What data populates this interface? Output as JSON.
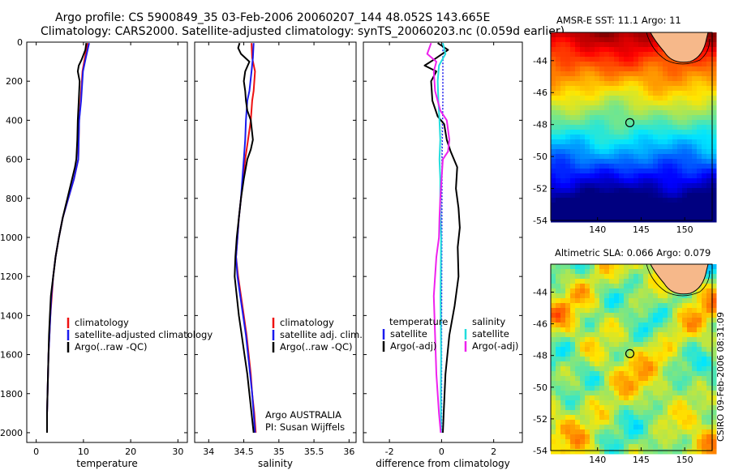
{
  "header": {
    "line1": "Argo profile: CS 5900849_35 03-Feb-2006 20060207_144 48.052S 143.665E",
    "line2": "Climatology: CARS2000. Satellite-adjusted climatology: synTS_20060203.nc (0.059d earlier)"
  },
  "colors": {
    "climatology": "#ee1111",
    "satellite": "#1a1aee",
    "argo": "#000000",
    "sat_salinity": "#22dddd",
    "argo_salinity": "#ee22ee"
  },
  "chart_data": [
    {
      "type": "line",
      "name": "temperature",
      "xlabel": "temperature",
      "xlim": [
        -2,
        32
      ],
      "ylim": [
        2050,
        0
      ],
      "xticks": [
        0,
        10,
        20,
        30
      ],
      "xtick_labels": [
        "0",
        "10",
        "20",
        "30"
      ],
      "yticks": [
        0,
        200,
        400,
        600,
        800,
        1000,
        1200,
        1400,
        1600,
        1800,
        2000
      ],
      "ytick_labels": [
        "0",
        "200",
        "400",
        "600",
        "800",
        "1000",
        "1200",
        "1400",
        "1600",
        "1800",
        "2000"
      ],
      "series": [
        {
          "name": "climatology",
          "color": "#ee1111",
          "points": [
            [
              10.9,
              5
            ],
            [
              10.3,
              80
            ],
            [
              9.8,
              150
            ],
            [
              9.4,
              300
            ],
            [
              9.1,
              400
            ],
            [
              8.9,
              600
            ],
            [
              8.0,
              700
            ],
            [
              6.8,
              800
            ],
            [
              5.6,
              900
            ],
            [
              4.8,
              1000
            ],
            [
              4.1,
              1100
            ],
            [
              3.6,
              1200
            ],
            [
              3.3,
              1300
            ],
            [
              3.0,
              1400
            ],
            [
              2.8,
              1500
            ],
            [
              2.6,
              1600
            ],
            [
              2.5,
              1700
            ],
            [
              2.4,
              1800
            ],
            [
              2.3,
              1900
            ],
            [
              2.3,
              2000
            ]
          ]
        },
        {
          "name": "satellite-adjusted climatology",
          "color": "#1a1aee",
          "points": [
            [
              11.2,
              5
            ],
            [
              10.5,
              80
            ],
            [
              9.9,
              150
            ],
            [
              9.5,
              300
            ],
            [
              9.1,
              400
            ],
            [
              8.9,
              600
            ],
            [
              8.0,
              700
            ],
            [
              6.8,
              800
            ],
            [
              5.6,
              900
            ],
            [
              4.8,
              1000
            ],
            [
              4.1,
              1100
            ],
            [
              3.6,
              1200
            ],
            [
              3.2,
              1300
            ],
            [
              3.0,
              1400
            ],
            [
              2.8,
              1500
            ],
            [
              2.6,
              1600
            ],
            [
              2.5,
              1700
            ],
            [
              2.4,
              1800
            ],
            [
              2.3,
              1900
            ],
            [
              2.3,
              2000
            ]
          ]
        },
        {
          "name": "Argo(..raw -QC)",
          "color": "#000000",
          "points": [
            [
              10.6,
              5
            ],
            [
              10.4,
              40
            ],
            [
              9.6,
              90
            ],
            [
              9.0,
              120
            ],
            [
              8.8,
              150
            ],
            [
              9.2,
              200
            ],
            [
              9.0,
              300
            ],
            [
              8.8,
              400
            ],
            [
              8.7,
              500
            ],
            [
              8.5,
              600
            ],
            [
              8.2,
              640
            ],
            [
              7.6,
              700
            ],
            [
              6.6,
              800
            ],
            [
              5.6,
              900
            ],
            [
              4.8,
              1000
            ],
            [
              4.1,
              1100
            ],
            [
              3.6,
              1200
            ],
            [
              3.1,
              1300
            ],
            [
              2.9,
              1400
            ],
            [
              2.7,
              1500
            ],
            [
              2.6,
              1600
            ],
            [
              2.5,
              1700
            ],
            [
              2.4,
              1800
            ],
            [
              2.3,
              1900
            ],
            [
              2.3,
              2000
            ]
          ]
        }
      ],
      "legend": [
        "climatology",
        "satellite-adjusted climatology",
        "Argo(..raw -QC)"
      ]
    },
    {
      "type": "line",
      "name": "salinity",
      "xlabel": "salinity",
      "xlim": [
        33.8,
        36.1
      ],
      "ylim": [
        2050,
        0
      ],
      "xticks": [
        34,
        34.5,
        35,
        35.5,
        36
      ],
      "xtick_labels": [
        "34",
        "34.5",
        "35",
        "35.5",
        "36"
      ],
      "yticks": [
        0,
        200,
        400,
        600,
        800,
        1000,
        1200,
        1400,
        1600,
        1800,
        2000
      ],
      "ytick_labels": [
        "",
        "",
        "",
        "",
        "",
        "",
        "",
        "",
        "",
        "",
        ""
      ],
      "series": [
        {
          "name": "climatology",
          "color": "#ee1111",
          "points": [
            [
              34.61,
              5
            ],
            [
              34.62,
              80
            ],
            [
              34.66,
              150
            ],
            [
              34.64,
              250
            ],
            [
              34.62,
              300
            ],
            [
              34.6,
              400
            ],
            [
              34.56,
              500
            ],
            [
              34.52,
              600
            ],
            [
              34.49,
              700
            ],
            [
              34.46,
              800
            ],
            [
              34.43,
              900
            ],
            [
              34.41,
              1000
            ],
            [
              34.39,
              1100
            ],
            [
              34.42,
              1200
            ],
            [
              34.46,
              1300
            ],
            [
              34.5,
              1400
            ],
            [
              34.54,
              1500
            ],
            [
              34.57,
              1600
            ],
            [
              34.6,
              1700
            ],
            [
              34.62,
              1800
            ],
            [
              34.65,
              1900
            ],
            [
              34.67,
              2000
            ]
          ]
        },
        {
          "name": "satellite adj. clim.",
          "color": "#1a1aee",
          "points": [
            [
              34.64,
              5
            ],
            [
              34.63,
              80
            ],
            [
              34.61,
              150
            ],
            [
              34.58,
              250
            ],
            [
              34.55,
              300
            ],
            [
              34.53,
              400
            ],
            [
              34.52,
              500
            ],
            [
              34.5,
              600
            ],
            [
              34.48,
              700
            ],
            [
              34.46,
              800
            ],
            [
              34.43,
              900
            ],
            [
              34.41,
              1000
            ],
            [
              34.39,
              1100
            ],
            [
              34.41,
              1200
            ],
            [
              34.45,
              1300
            ],
            [
              34.49,
              1400
            ],
            [
              34.53,
              1500
            ],
            [
              34.56,
              1600
            ],
            [
              34.59,
              1700
            ],
            [
              34.62,
              1800
            ],
            [
              34.64,
              1900
            ],
            [
              34.66,
              2000
            ]
          ]
        },
        {
          "name": "Argo(..raw -QC)",
          "color": "#000000",
          "points": [
            [
              34.44,
              5
            ],
            [
              34.42,
              30
            ],
            [
              34.46,
              60
            ],
            [
              34.58,
              100
            ],
            [
              34.52,
              150
            ],
            [
              34.5,
              200
            ],
            [
              34.52,
              250
            ],
            [
              34.53,
              300
            ],
            [
              34.55,
              350
            ],
            [
              34.6,
              400
            ],
            [
              34.63,
              500
            ],
            [
              34.6,
              550
            ],
            [
              34.55,
              600
            ],
            [
              34.5,
              700
            ],
            [
              34.46,
              800
            ],
            [
              34.43,
              900
            ],
            [
              34.4,
              1000
            ],
            [
              34.38,
              1100
            ],
            [
              34.37,
              1200
            ],
            [
              34.4,
              1300
            ],
            [
              34.43,
              1400
            ],
            [
              34.47,
              1500
            ],
            [
              34.51,
              1600
            ],
            [
              34.55,
              1700
            ],
            [
              34.58,
              1800
            ],
            [
              34.61,
              1900
            ],
            [
              34.64,
              2000
            ]
          ]
        }
      ],
      "legend": [
        "climatology",
        "satellite adj. clim.",
        "Argo(..raw -QC)"
      ],
      "annotation": [
        "Argo AUSTRALIA",
        "PI: Susan Wijffels"
      ]
    },
    {
      "type": "line",
      "name": "difference from climatology",
      "xlabel": "difference from climatology",
      "xlim": [
        -3,
        3.1
      ],
      "ylim": [
        2050,
        0
      ],
      "xticks": [
        -2,
        0,
        2
      ],
      "xtick_labels": [
        "-2",
        "0",
        "2"
      ],
      "yticks": [
        0,
        200,
        400,
        600,
        800,
        1000,
        1200,
        1400,
        1600,
        1800,
        2000
      ],
      "ytick_labels": [
        "",
        "",
        "",
        "",
        "",
        "",
        "",
        "",
        "",
        "",
        ""
      ],
      "legend_headers": [
        "temperature",
        "salinity"
      ],
      "series": [
        {
          "name": "satellite",
          "group": "temperature",
          "color": "#1a1aee",
          "dashed": true,
          "points": [
            [
              0.05,
              5
            ],
            [
              0.05,
              300
            ],
            [
              0.02,
              600
            ],
            [
              0.01,
              1000
            ],
            [
              0.0,
              1400
            ],
            [
              0.0,
              2000
            ]
          ]
        },
        {
          "name": "Argo(-adj)",
          "group": "temperature",
          "color": "#000000",
          "points": [
            [
              -0.15,
              5
            ],
            [
              0.25,
              40
            ],
            [
              -0.3,
              90
            ],
            [
              -0.65,
              120
            ],
            [
              -0.2,
              150
            ],
            [
              -0.4,
              200
            ],
            [
              -0.35,
              300
            ],
            [
              -0.15,
              380
            ],
            [
              0.1,
              420
            ],
            [
              0.2,
              500
            ],
            [
              0.35,
              560
            ],
            [
              0.6,
              640
            ],
            [
              0.55,
              750
            ],
            [
              0.65,
              850
            ],
            [
              0.7,
              950
            ],
            [
              0.62,
              1050
            ],
            [
              0.65,
              1200
            ],
            [
              0.5,
              1350
            ],
            [
              0.3,
              1500
            ],
            [
              0.15,
              1700
            ],
            [
              0.08,
              1900
            ],
            [
              0.05,
              2000
            ]
          ]
        },
        {
          "name": "satellite",
          "group": "salinity",
          "color": "#22dddd",
          "points": [
            [
              0.05,
              5
            ],
            [
              0.15,
              60
            ],
            [
              -0.1,
              120
            ],
            [
              -0.15,
              200
            ],
            [
              -0.12,
              300
            ],
            [
              -0.08,
              400
            ],
            [
              -0.05,
              500
            ],
            [
              -0.08,
              600
            ],
            [
              -0.05,
              700
            ],
            [
              -0.05,
              900
            ],
            [
              -0.02,
              1000
            ],
            [
              -0.04,
              1300
            ],
            [
              -0.02,
              1600
            ],
            [
              -0.03,
              1800
            ],
            [
              -0.02,
              2000
            ]
          ]
        },
        {
          "name": "Argo(-adj)",
          "group": "salinity",
          "color": "#ee22ee",
          "points": [
            [
              -0.4,
              5
            ],
            [
              -0.55,
              60
            ],
            [
              -0.2,
              100
            ],
            [
              -0.3,
              150
            ],
            [
              -0.25,
              250
            ],
            [
              -0.05,
              350
            ],
            [
              0.2,
              400
            ],
            [
              0.3,
              500
            ],
            [
              0.25,
              560
            ],
            [
              0.05,
              600
            ],
            [
              0.0,
              700
            ],
            [
              -0.05,
              800
            ],
            [
              -0.08,
              900
            ],
            [
              -0.1,
              1000
            ],
            [
              -0.2,
              1100
            ],
            [
              -0.3,
              1300
            ],
            [
              -0.25,
              1500
            ],
            [
              -0.2,
              1700
            ],
            [
              -0.1,
              1900
            ],
            [
              -0.03,
              2000
            ]
          ]
        }
      ]
    }
  ],
  "maps": {
    "sst": {
      "title": "AMSR-E SST: 11.1 Argo: 11",
      "lon_ticks": [
        "140",
        "145",
        "150"
      ],
      "lat_ticks": [
        "-44",
        "-46",
        "-48",
        "-50",
        "-52",
        "-54"
      ],
      "marker_label": "Argo float position"
    },
    "sla": {
      "title": "Altimetric SLA: 0.066 Argo: 0.079",
      "lon_ticks": [
        "140",
        "145",
        "150"
      ],
      "lat_ticks": [
        "-44",
        "-46",
        "-48",
        "-50",
        "-52",
        "-54"
      ]
    }
  },
  "stamp": "CSIRO 09-Feb-2006 08:31:09"
}
